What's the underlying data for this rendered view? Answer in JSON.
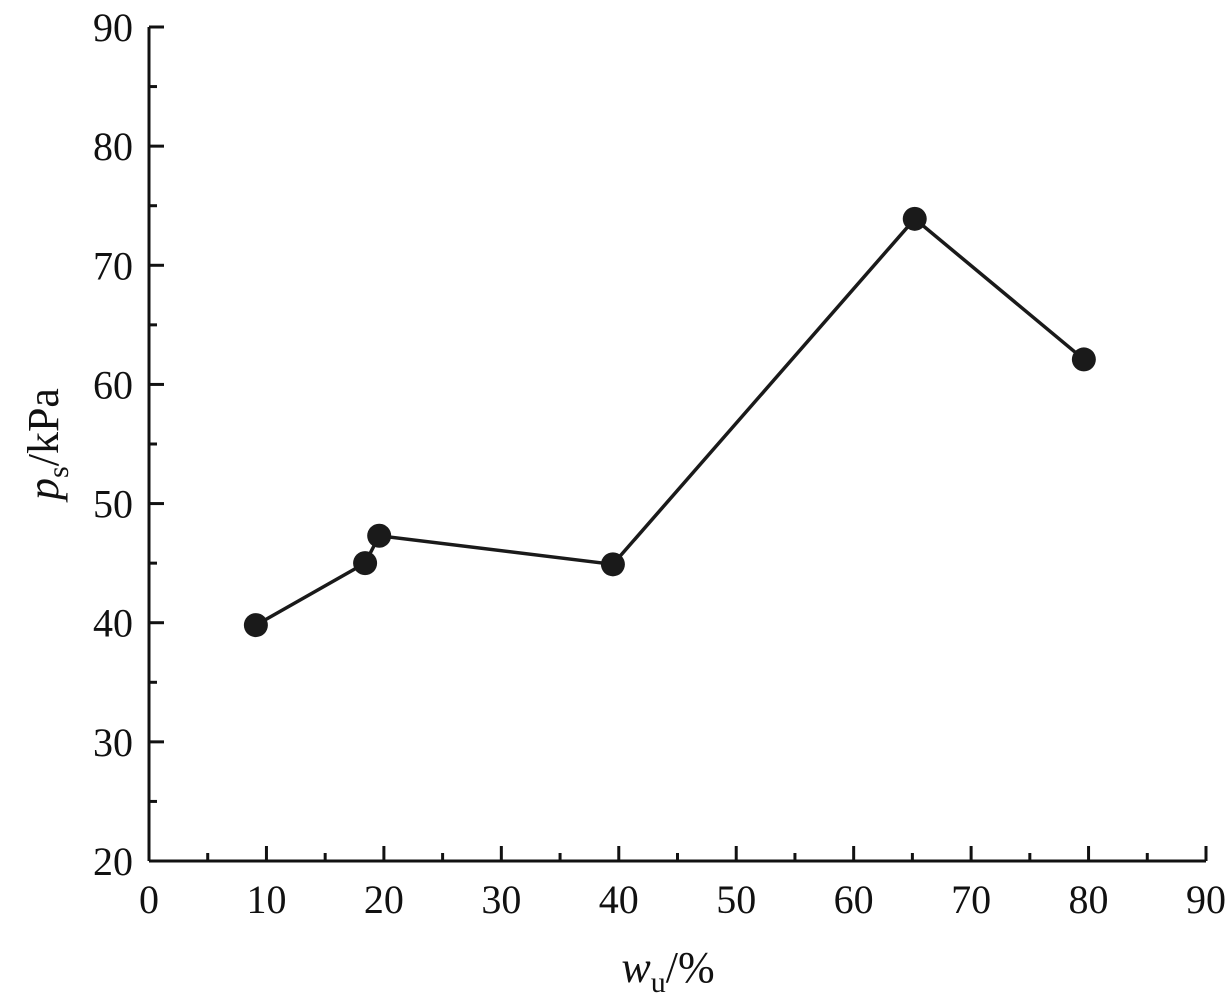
{
  "chart_data": {
    "type": "line",
    "title": "",
    "xlabel": {
      "var": "w",
      "sub": "u",
      "unit": "/%"
    },
    "ylabel": {
      "var": "p",
      "sub": "s",
      "unit": "/kPa"
    },
    "xlim": [
      0,
      90
    ],
    "ylim": [
      20,
      90
    ],
    "x_major_ticks": [
      0,
      10,
      20,
      30,
      40,
      50,
      60,
      70,
      80,
      90
    ],
    "x_tick_labels": [
      "0",
      "10",
      "20",
      "30",
      "40",
      "50",
      "60",
      "70",
      "80",
      "90"
    ],
    "x_minor_ticks": [
      5,
      15,
      25,
      35,
      45,
      55,
      65,
      75,
      85
    ],
    "y_major_ticks": [
      20,
      30,
      40,
      50,
      60,
      70,
      80,
      90
    ],
    "y_tick_labels": [
      "20",
      "30",
      "40",
      "50",
      "60",
      "70",
      "80",
      "90"
    ],
    "y_minor_ticks": [
      25,
      35,
      45,
      55,
      65,
      75,
      85
    ],
    "grid": false,
    "legend": "none",
    "colors": {
      "series": "#1a1a1a",
      "axis": "#111111"
    },
    "series": [
      {
        "x": [
          9.1,
          18.4,
          19.6,
          39.5,
          65.2,
          79.6
        ],
        "y": [
          39.8,
          45.0,
          47.3,
          44.9,
          73.9,
          62.1
        ]
      }
    ]
  }
}
